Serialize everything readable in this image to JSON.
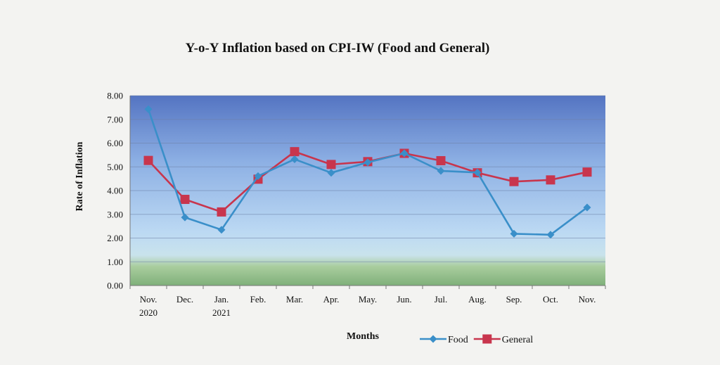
{
  "chart_data": {
    "type": "line",
    "title": "Y-o-Y Inflation based on CPI-IW (Food and General)",
    "xlabel": "Months",
    "ylabel": "Rate of Inflation",
    "categories": [
      [
        "Nov.",
        "2020"
      ],
      [
        "Dec."
      ],
      [
        "Jan.",
        "2021"
      ],
      [
        "Feb."
      ],
      [
        "Mar."
      ],
      [
        "Apr."
      ],
      [
        "May."
      ],
      [
        "Jun."
      ],
      [
        "Jul."
      ],
      [
        "Aug."
      ],
      [
        "Sep."
      ],
      [
        "Oct."
      ],
      [
        "Nov."
      ]
    ],
    "ylim": [
      0,
      8
    ],
    "yticks": [
      "0.00",
      "1.00",
      "2.00",
      "3.00",
      "4.00",
      "5.00",
      "6.00",
      "7.00",
      "8.00"
    ],
    "grid": true,
    "legend_position": "bottom-right",
    "series": [
      {
        "name": "Food",
        "color": "#3a8fc9",
        "marker": "diamond",
        "values": [
          7.43,
          2.87,
          2.35,
          4.61,
          5.32,
          4.75,
          5.19,
          5.57,
          4.83,
          4.76,
          2.18,
          2.14,
          3.29
        ]
      },
      {
        "name": "General",
        "color": "#c8354d",
        "marker": "square",
        "values": [
          5.27,
          3.63,
          3.1,
          4.48,
          5.64,
          5.1,
          5.22,
          5.57,
          5.26,
          4.75,
          4.38,
          4.45,
          4.78
        ]
      }
    ]
  }
}
